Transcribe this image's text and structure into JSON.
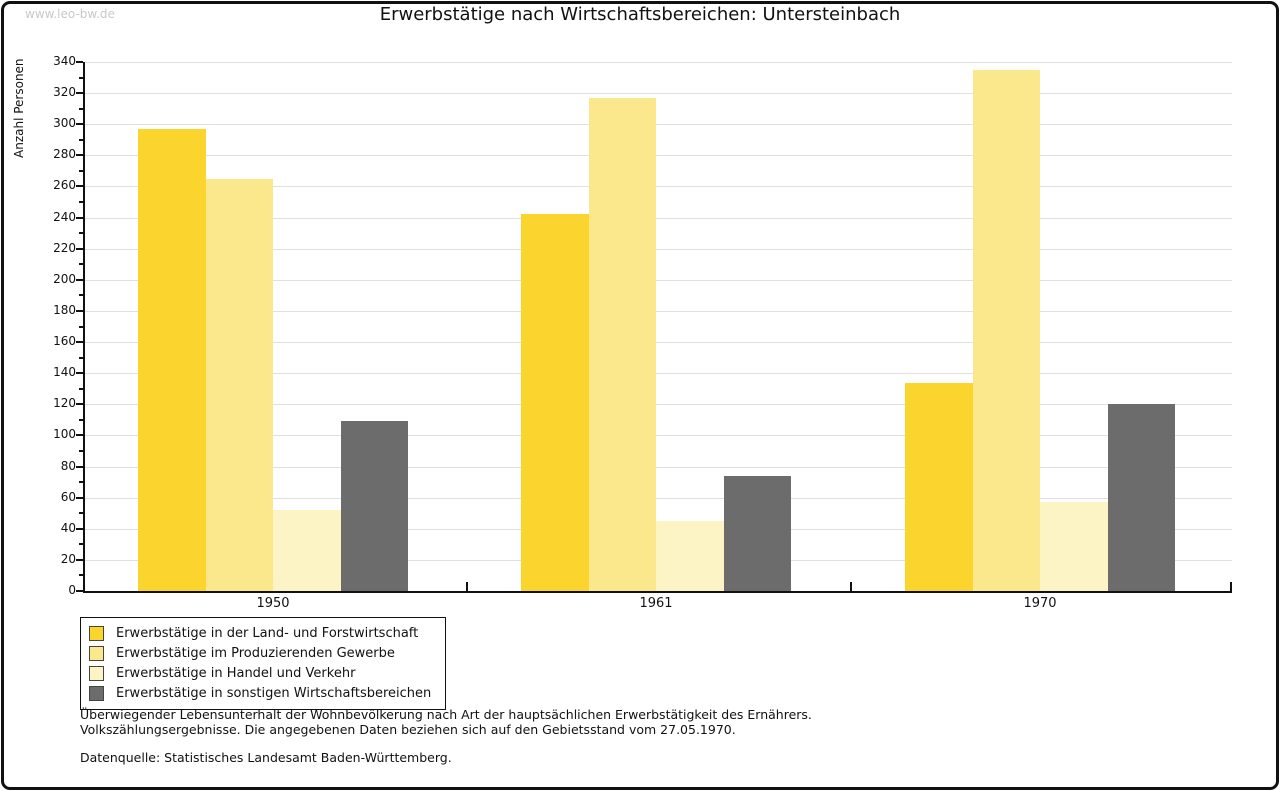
{
  "watermark": "www.leo-bw.de",
  "title": "Erwerbstätige nach Wirtschaftsbereichen: Untersteinbach",
  "chart_data": {
    "type": "bar",
    "title": "Erwerbstätige nach Wirtschaftsbereichen: Untersteinbach",
    "xlabel": "",
    "ylabel": "Anzahl Personen",
    "ylim": [
      0,
      340
    ],
    "ytick_step": 20,
    "grid": true,
    "legend_position": "bottom-left",
    "categories": [
      "1950",
      "1961",
      "1970"
    ],
    "series": [
      {
        "name": "Erwerbstätige in der Land- und Forstwirtschaft",
        "color": "#fbd42d",
        "values": [
          297,
          242,
          134
        ]
      },
      {
        "name": "Erwerbstätige im Produzierenden Gewerbe",
        "color": "#fce88c",
        "values": [
          265,
          317,
          335
        ]
      },
      {
        "name": "Erwerbstätige in Handel und Verkehr",
        "color": "#fcf4c5",
        "values": [
          52,
          45,
          57
        ]
      },
      {
        "name": "Erwerbstätige in sonstigen Wirtschaftsbereichen",
        "color": "#6c6c6c",
        "values": [
          109,
          74,
          120
        ]
      }
    ]
  },
  "footnotes": {
    "line1": "Überwiegender Lebensunterhalt der Wohnbevölkerung nach Art der hauptsächlichen Erwerbstätigkeit des Ernährers.",
    "line2": "Volkszählungsergebnisse. Die angegebenen Daten beziehen sich auf den Gebietsstand vom 27.05.1970.",
    "source": "Datenquelle: Statistisches Landesamt Baden-Württemberg."
  },
  "colors": {
    "gridline": "#e0e0e0",
    "axis": "#111111",
    "watermark": "#c9c9c9",
    "background": "#ffffff"
  }
}
